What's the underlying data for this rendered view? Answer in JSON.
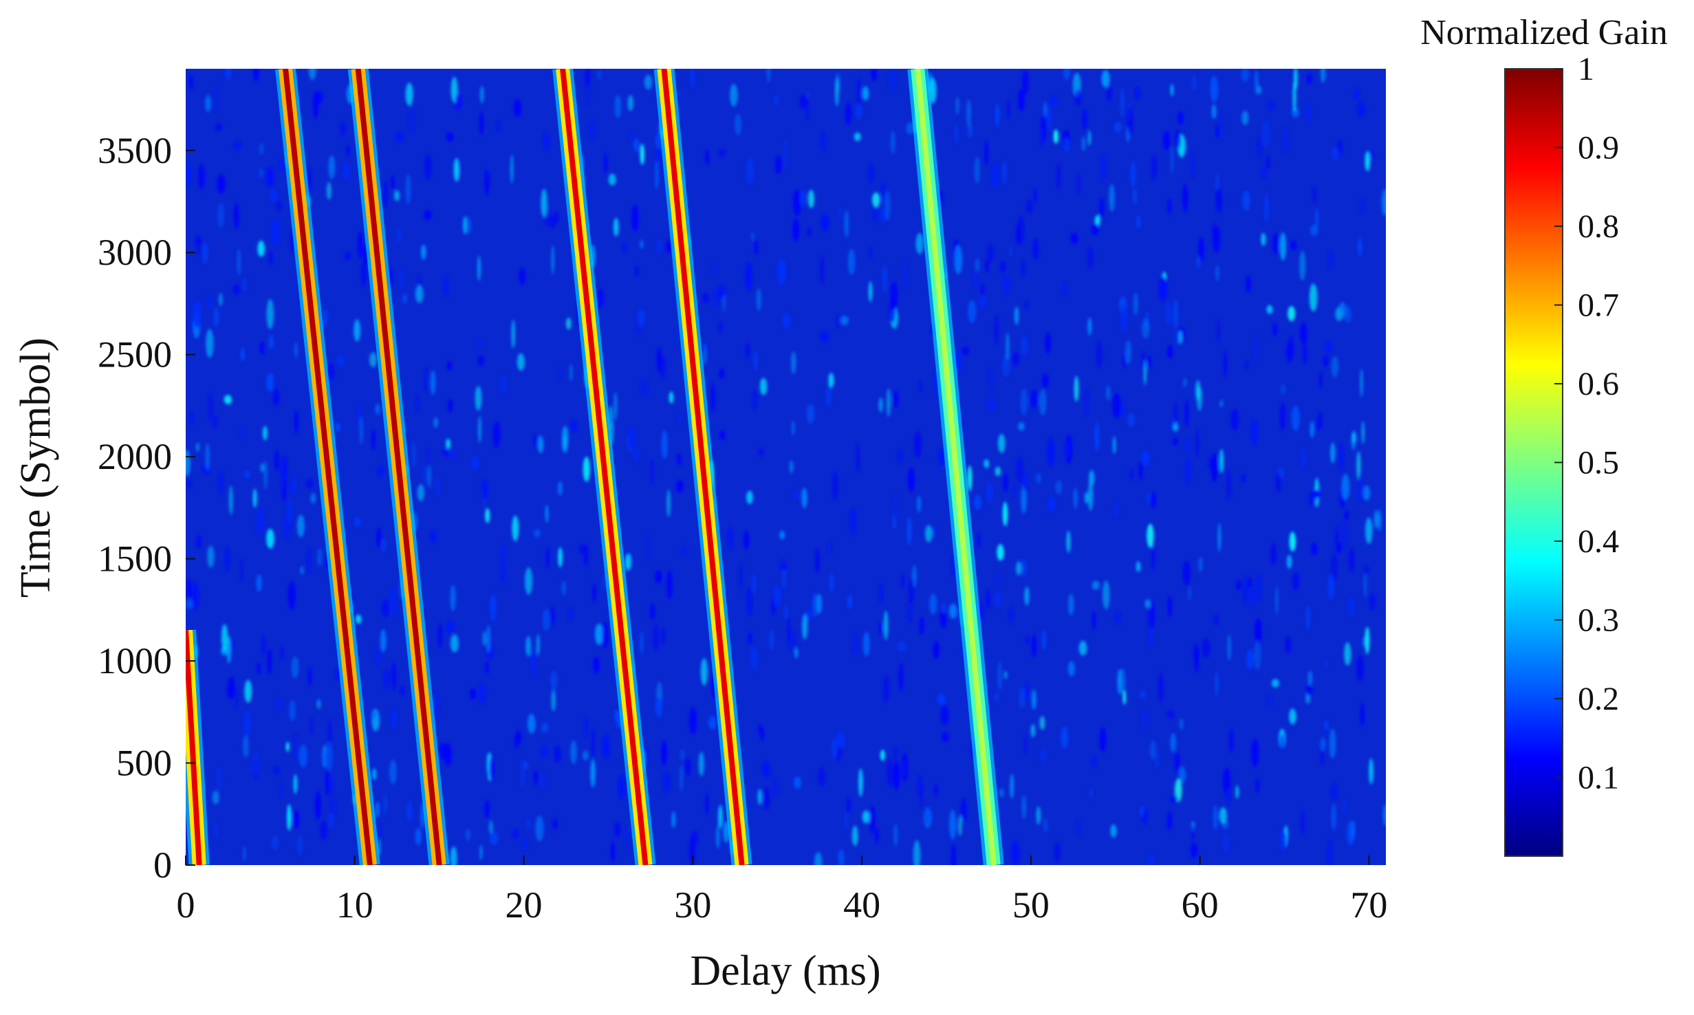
{
  "chart_data": {
    "type": "heatmap",
    "title": "",
    "xlabel": "Delay (ms)",
    "ylabel": "Time (Symbol)",
    "xlim": [
      0,
      71
    ],
    "ylim": [
      0,
      3900
    ],
    "x_ticks": [
      0,
      10,
      20,
      30,
      40,
      50,
      60,
      70
    ],
    "y_ticks": [
      0,
      500,
      1000,
      1500,
      2000,
      2500,
      3000,
      3500
    ],
    "colorbar": {
      "label": "Normalized Gain",
      "colormap": "jet",
      "range": [
        0,
        1
      ],
      "ticks": [
        0.1,
        0.2,
        0.3,
        0.4,
        0.5,
        0.6,
        0.7,
        0.8,
        0.9,
        1
      ]
    },
    "paths": [
      {
        "delay_at_time_0": 0.8,
        "delay_at_time_1150": 0.0,
        "peak_gain": 0.9
      },
      {
        "delay_at_time_0": 10.9,
        "delay_at_time_3900": 5.9,
        "peak_gain": 0.95
      },
      {
        "delay_at_time_0": 15.0,
        "delay_at_time_3900": 10.2,
        "peak_gain": 0.95
      },
      {
        "delay_at_time_0": 27.2,
        "delay_at_time_3900": 22.3,
        "peak_gain": 0.9
      },
      {
        "delay_at_time_0": 32.9,
        "delay_at_time_3900": 28.3,
        "peak_gain": 0.9
      },
      {
        "delay_at_time_0": 47.8,
        "delay_at_time_3900": 43.3,
        "peak_gain": 0.55
      }
    ],
    "colors": {
      "background_low": "#0a28d0",
      "jet_stops": [
        "#00007f",
        "#0000ff",
        "#007fff",
        "#00ffff",
        "#7fff7f",
        "#ffff00",
        "#ff7f00",
        "#ff0000",
        "#7f0000"
      ]
    }
  }
}
